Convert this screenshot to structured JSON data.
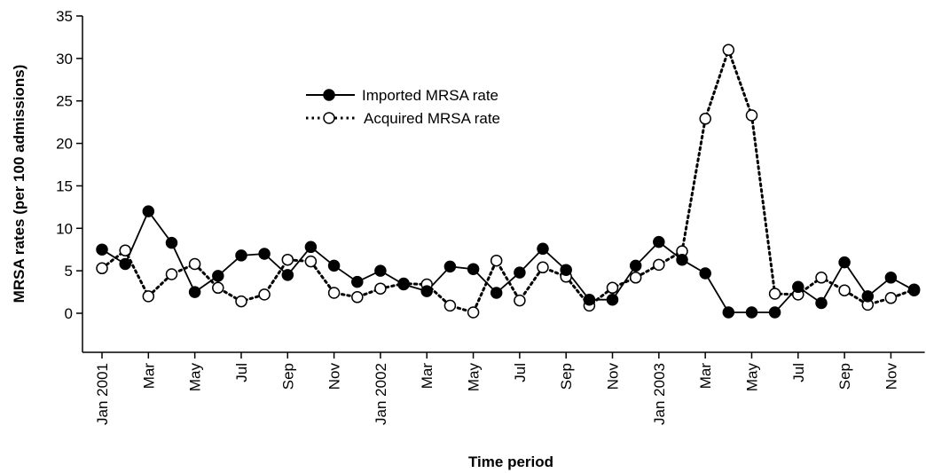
{
  "chart_data": {
    "type": "line",
    "xlabel": "Time period",
    "ylabel": "MRSA rates (per 100 admissions)",
    "ylim": [
      0,
      35
    ],
    "yticks": [
      0,
      5,
      10,
      15,
      20,
      25,
      30,
      35
    ],
    "grid": false,
    "legend_position": "upper-left-center",
    "x": [
      "Jan 2001",
      "Feb 2001",
      "Mar 2001",
      "Apr 2001",
      "May 2001",
      "Jun 2001",
      "Jul 2001",
      "Aug 2001",
      "Sep 2001",
      "Oct 2001",
      "Nov 2001",
      "Dec 2001",
      "Jan 2002",
      "Feb 2002",
      "Mar 2002",
      "Apr 2002",
      "May 2002",
      "Jun 2002",
      "Jul 2002",
      "Aug 2002",
      "Sep 2002",
      "Oct 2002",
      "Nov 2002",
      "Dec 2002",
      "Jan 2003",
      "Feb 2003",
      "Mar 2003",
      "Apr 2003",
      "May 2003",
      "Jun 2003",
      "Jul 2003",
      "Aug 2003",
      "Sep 2003",
      "Oct 2003",
      "Nov 2003",
      "Dec 2003"
    ],
    "x_tick_labels": [
      "Jan 2001",
      "Mar",
      "May",
      "Jul",
      "Sep",
      "Nov",
      "Jan 2002",
      "Mar",
      "May",
      "Jul",
      "Sep",
      "Nov",
      "Jan 2003",
      "Mar",
      "May",
      "Jul",
      "Sep",
      "Nov"
    ],
    "series": [
      {
        "name": "Imported MRSA rate",
        "style": "solid",
        "marker": "filled-circle",
        "values": [
          7.5,
          5.8,
          12.0,
          8.3,
          2.5,
          4.4,
          6.8,
          7.0,
          4.5,
          7.8,
          5.6,
          3.7,
          5.0,
          3.4,
          2.6,
          5.5,
          5.2,
          2.4,
          4.8,
          7.6,
          5.1,
          1.6,
          1.6,
          5.6,
          8.4,
          6.3,
          4.7,
          0.1,
          0.1,
          0.1,
          3.1,
          1.2,
          6.0,
          2.0,
          4.2,
          2.7
        ]
      },
      {
        "name": "Acquired MRSA rate",
        "style": "dotted",
        "marker": "open-circle",
        "values": [
          5.3,
          7.4,
          2.0,
          4.6,
          5.8,
          3.0,
          1.4,
          2.2,
          6.3,
          6.1,
          2.4,
          1.9,
          2.9,
          3.5,
          3.4,
          0.9,
          0.1,
          6.2,
          1.5,
          5.4,
          4.3,
          0.9,
          3.0,
          4.2,
          5.7,
          7.3,
          22.9,
          31.0,
          23.3,
          2.3,
          2.2,
          4.2,
          2.7,
          1.0,
          1.8,
          2.8
        ]
      }
    ]
  },
  "colors": {
    "ink": "#000000",
    "background": "#ffffff"
  }
}
